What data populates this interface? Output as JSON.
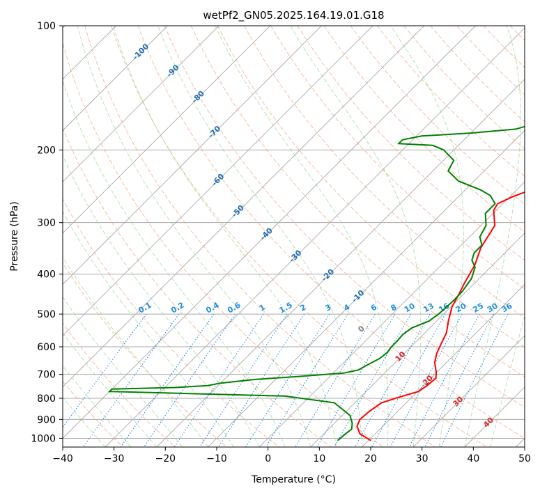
{
  "chart_data": {
    "type": "line",
    "title": "wetPf2_GN05.2025.164.19.01.G18",
    "xlabel": "Temperature (°C)",
    "ylabel": "Pressure (hPa)",
    "xlim": [
      -40,
      50
    ],
    "ylim": [
      1050,
      100
    ],
    "y_scale": "log",
    "x_ticks": [
      -40,
      -30,
      -20,
      -10,
      0,
      10,
      20,
      30,
      40,
      50
    ],
    "y_ticks": [
      1000,
      900,
      800,
      700,
      600,
      500,
      400,
      300,
      200,
      100
    ],
    "grid": true,
    "series": [
      {
        "role": "temperature",
        "color": "#ff0000",
        "points": [
          [
            20.5,
            1013
          ],
          [
            17,
            975
          ],
          [
            15,
            935
          ],
          [
            14.2,
            900
          ],
          [
            14.5,
            860
          ],
          [
            15.2,
            820
          ],
          [
            17.5,
            795
          ],
          [
            20.2,
            770
          ],
          [
            20.7,
            745
          ],
          [
            21,
            715
          ],
          [
            19.8,
            690
          ],
          [
            17.7,
            655
          ],
          [
            16.3,
            622
          ],
          [
            15.3,
            590
          ],
          [
            14.2,
            555
          ],
          [
            12.3,
            520
          ],
          [
            10.2,
            480
          ],
          [
            9,
            445
          ],
          [
            8,
            420
          ],
          [
            6.5,
            380
          ],
          [
            4.3,
            345
          ],
          [
            2.7,
            305
          ],
          [
            -0.5,
            280
          ],
          [
            -1,
            270
          ],
          [
            0.5,
            260
          ],
          [
            3,
            249
          ],
          [
            6.5,
            235
          ],
          [
            9.5,
            222
          ],
          [
            11.5,
            208
          ],
          [
            12.5,
            195
          ],
          [
            12.8,
            183
          ],
          [
            12.6,
            170
          ],
          [
            11.8,
            155
          ],
          [
            11,
            140
          ],
          [
            10,
            128
          ],
          [
            9.5,
            118
          ],
          [
            10.3,
            112
          ],
          [
            12,
            107
          ],
          [
            13.5,
            103
          ],
          [
            13.8,
            100
          ]
        ]
      },
      {
        "role": "dewpoint",
        "color": "#008000",
        "points": [
          [
            14,
            1013
          ],
          [
            14.2,
            980
          ],
          [
            14.5,
            950
          ],
          [
            13.5,
            920
          ],
          [
            11.5,
            880
          ],
          [
            6,
            820
          ],
          [
            -5,
            790
          ],
          [
            -40,
            770
          ],
          [
            -40,
            760
          ],
          [
            -28,
            753
          ],
          [
            -22,
            745
          ],
          [
            -20,
            735
          ],
          [
            -14,
            720
          ],
          [
            -6,
            708
          ],
          [
            2,
            695
          ],
          [
            4.3,
            683
          ],
          [
            5,
            665
          ],
          [
            6.2,
            640
          ],
          [
            6.5,
            620
          ],
          [
            6.2,
            600
          ],
          [
            6.2,
            580
          ],
          [
            6,
            560
          ],
          [
            6.5,
            540
          ],
          [
            8.5,
            520
          ],
          [
            9,
            500
          ],
          [
            9.2,
            480
          ],
          [
            9.3,
            460
          ],
          [
            9.2,
            440
          ],
          [
            8.5,
            410
          ],
          [
            7,
            385
          ],
          [
            5,
            370
          ],
          [
            4,
            355
          ],
          [
            4,
            340
          ],
          [
            2,
            325
          ],
          [
            1,
            305
          ],
          [
            -1.5,
            285
          ],
          [
            -1.5,
            270
          ],
          [
            -4,
            258
          ],
          [
            -7,
            250
          ],
          [
            -13,
            238
          ],
          [
            -17,
            225
          ],
          [
            -18,
            212
          ],
          [
            -22,
            200
          ],
          [
            -25,
            195
          ],
          [
            -32,
            193
          ],
          [
            -32,
            189
          ],
          [
            -29,
            185
          ],
          [
            -20,
            182
          ],
          [
            -12,
            178
          ],
          [
            -9,
            172
          ],
          [
            -9,
            164
          ],
          [
            -10,
            155
          ],
          [
            -9,
            143
          ],
          [
            -7,
            133
          ],
          [
            -3,
            124
          ],
          [
            -1.5,
            117
          ],
          [
            -1.5,
            109
          ],
          [
            -1.2,
            103
          ],
          [
            -1,
            100
          ]
        ]
      }
    ],
    "dry_adiabat_labels": [
      "-100",
      "-90",
      "-80",
      "-70",
      "-60",
      "-50",
      "-40",
      "-30",
      "-20",
      "-10"
    ],
    "mixing_ratio_labels": [
      "0.1",
      "0.2",
      "0.4",
      "0.6",
      "1",
      "1.5",
      "2",
      "3",
      "4",
      "6",
      "8",
      "10",
      "13",
      "16",
      "20",
      "25",
      "30",
      "36"
    ],
    "moist_adiabat_labels": [
      "0",
      "10",
      "20",
      "30",
      "40"
    ],
    "colors": {
      "isotherm": "#aaaaaa",
      "isobar": "#aaaaaa",
      "dry_adiabat": "#f4a582",
      "moist_adiabat": "#99d594",
      "mixing_ratio": "#1f8ee0",
      "dry_label": "#1f6fb4",
      "moist_label_zero": "#808080",
      "moist_label": "#d62728",
      "temperature": "#ff0000",
      "dewpoint": "#008000"
    }
  }
}
